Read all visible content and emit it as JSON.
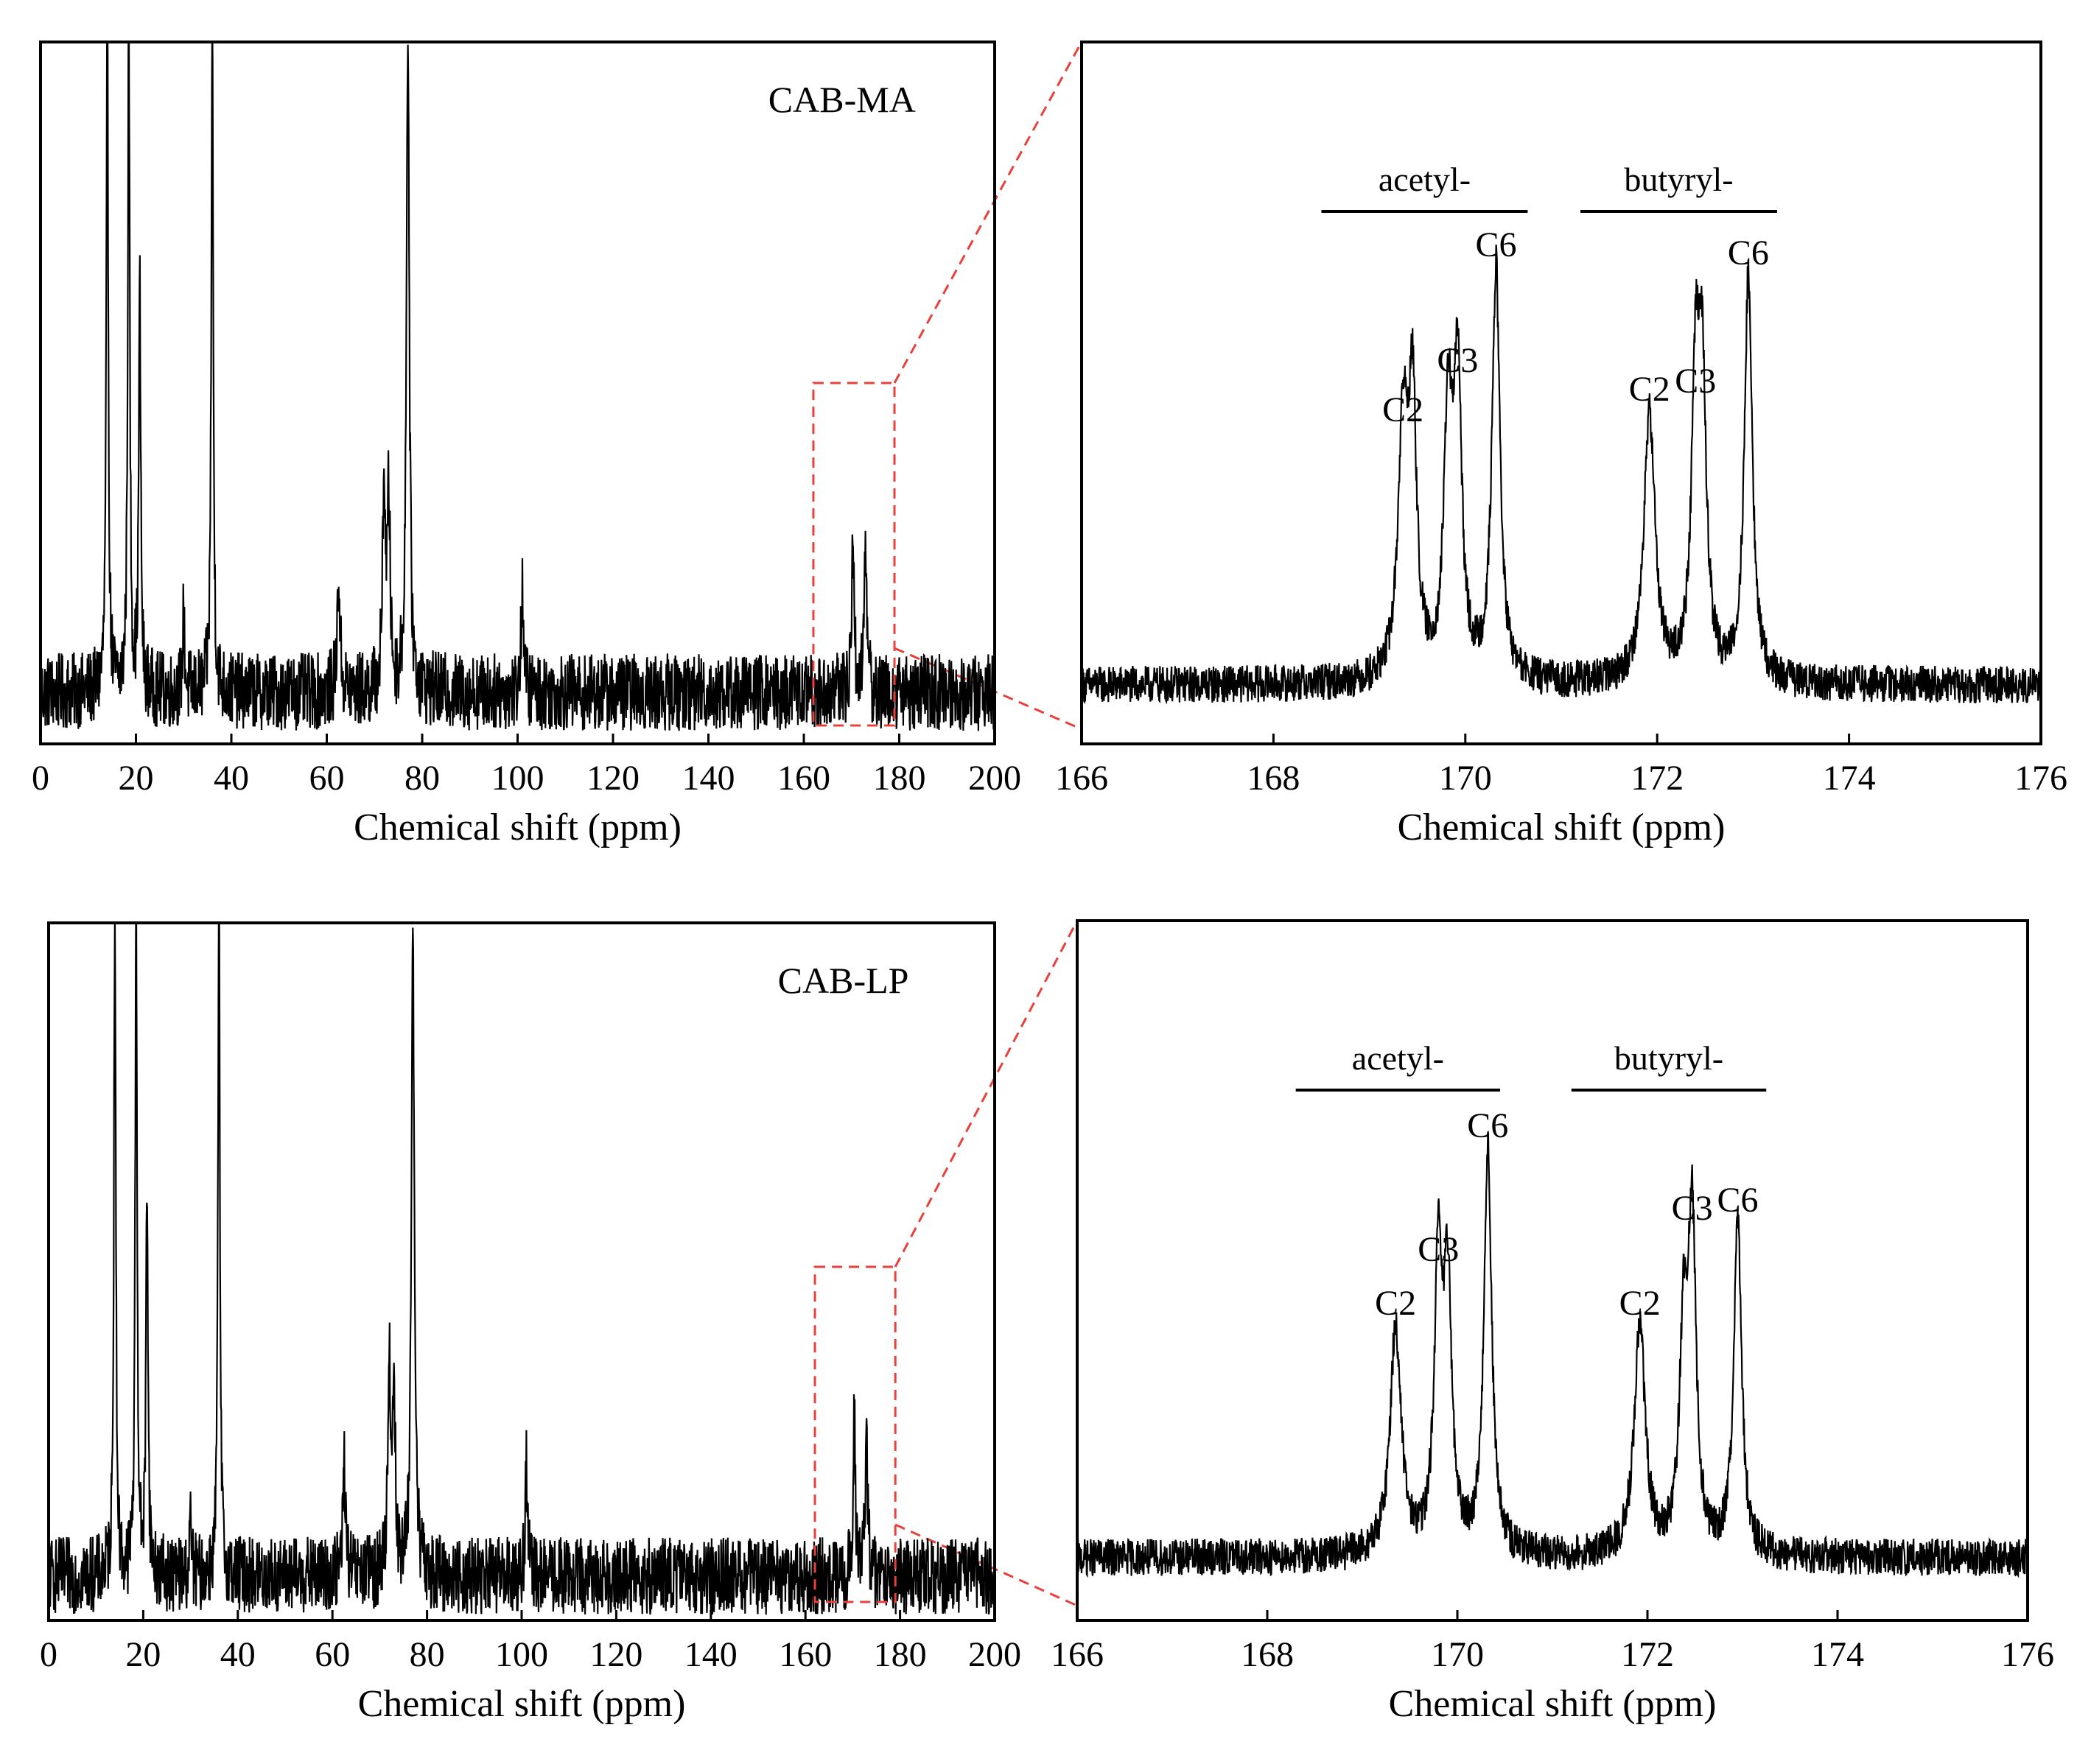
{
  "chart_data": [
    {
      "id": "cab-ma-full",
      "type": "line",
      "title": "",
      "annotation": "CAB-MA",
      "xlabel": "Chemical shift (ppm)",
      "ylabel": "",
      "xlim": [
        0,
        200
      ],
      "xticks": [
        "0",
        "20",
        "40",
        "60",
        "80",
        "100",
        "120",
        "140",
        "160",
        "180",
        "200"
      ],
      "noise": 0.075,
      "peaks": [
        {
          "x": 14,
          "h": 1.3,
          "w": 0.25
        },
        {
          "x": 18.5,
          "h": 1.3,
          "w": 0.25
        },
        {
          "x": 20.8,
          "h": 0.78,
          "w": 0.25
        },
        {
          "x": 30,
          "h": 0.15,
          "w": 0.25
        },
        {
          "x": 36,
          "h": 1.3,
          "w": 0.25
        },
        {
          "x": 62.5,
          "h": 0.22,
          "w": 0.35
        },
        {
          "x": 72,
          "h": 0.4,
          "w": 0.35
        },
        {
          "x": 73,
          "h": 0.36,
          "w": 0.35
        },
        {
          "x": 77,
          "h": 1.3,
          "w": 0.35
        },
        {
          "x": 101,
          "h": 0.21,
          "w": 0.3
        },
        {
          "x": 170.3,
          "h": 0.32,
          "w": 0.3
        },
        {
          "x": 172.9,
          "h": 0.32,
          "w": 0.3
        }
      ],
      "zoom_box": [
        162,
        179
      ]
    },
    {
      "id": "cab-ma-zoom",
      "type": "line",
      "title": "",
      "xlabel": "Chemical shift (ppm)",
      "ylabel": "",
      "xlim": [
        166,
        176
      ],
      "xticks": [
        "166",
        "168",
        "170",
        "172",
        "174",
        "176"
      ],
      "noise": 0.045,
      "groups": [
        {
          "label": "acetyl-",
          "range": [
            168.5,
            170.65
          ]
        },
        {
          "label": "butyryl-",
          "range": [
            171.2,
            173.25
          ]
        }
      ],
      "peaks": [
        {
          "x": 169.35,
          "h": 0.6,
          "w": 0.06,
          "label": "C2"
        },
        {
          "x": 169.45,
          "h": 0.64,
          "w": 0.05
        },
        {
          "x": 169.82,
          "h": 0.62,
          "w": 0.05
        },
        {
          "x": 169.92,
          "h": 0.72,
          "w": 0.05,
          "label": "C3"
        },
        {
          "x": 170.32,
          "h": 1.0,
          "w": 0.05,
          "label": "C6"
        },
        {
          "x": 171.92,
          "h": 0.65,
          "w": 0.07,
          "label": "C2"
        },
        {
          "x": 172.4,
          "h": 0.67,
          "w": 0.05,
          "label": "C3"
        },
        {
          "x": 172.47,
          "h": 0.67,
          "w": 0.05
        },
        {
          "x": 172.95,
          "h": 0.98,
          "w": 0.05,
          "label": "C6"
        }
      ]
    },
    {
      "id": "cab-lp-full",
      "type": "line",
      "title": "",
      "annotation": "CAB-LP",
      "xlabel": "Chemical shift (ppm)",
      "ylabel": "",
      "xlim": [
        0,
        200
      ],
      "xticks": [
        "0",
        "20",
        "40",
        "60",
        "80",
        "100",
        "120",
        "140",
        "160",
        "180",
        "200"
      ],
      "noise": 0.075,
      "peaks": [
        {
          "x": 14,
          "h": 1.3,
          "w": 0.25
        },
        {
          "x": 18.5,
          "h": 1.3,
          "w": 0.25
        },
        {
          "x": 20.8,
          "h": 0.78,
          "w": 0.25
        },
        {
          "x": 30,
          "h": 0.1,
          "w": 0.25
        },
        {
          "x": 36,
          "h": 1.3,
          "w": 0.25
        },
        {
          "x": 62.5,
          "h": 0.22,
          "w": 0.35
        },
        {
          "x": 72,
          "h": 0.4,
          "w": 0.35
        },
        {
          "x": 73,
          "h": 0.36,
          "w": 0.35
        },
        {
          "x": 77,
          "h": 1.3,
          "w": 0.35
        },
        {
          "x": 101,
          "h": 0.21,
          "w": 0.3
        },
        {
          "x": 170.3,
          "h": 0.32,
          "w": 0.3
        },
        {
          "x": 172.9,
          "h": 0.28,
          "w": 0.3
        }
      ],
      "zoom_box": [
        162,
        179
      ]
    },
    {
      "id": "cab-lp-zoom",
      "type": "line",
      "title": "",
      "xlabel": "Chemical shift (ppm)",
      "ylabel": "",
      "xlim": [
        166,
        176
      ],
      "xticks": [
        "166",
        "168",
        "170",
        "172",
        "174",
        "176"
      ],
      "noise": 0.045,
      "groups": [
        {
          "label": "acetyl-",
          "range": [
            168.3,
            170.45
          ]
        },
        {
          "label": "butyryl-",
          "range": [
            171.2,
            173.25
          ]
        }
      ],
      "peaks": [
        {
          "x": 169.35,
          "h": 0.55,
          "w": 0.07,
          "label": "C2"
        },
        {
          "x": 169.8,
          "h": 0.68,
          "w": 0.05,
          "label": "C3"
        },
        {
          "x": 169.9,
          "h": 0.62,
          "w": 0.05
        },
        {
          "x": 170.32,
          "h": 0.98,
          "w": 0.05,
          "label": "C6"
        },
        {
          "x": 171.92,
          "h": 0.55,
          "w": 0.07,
          "label": "C2"
        },
        {
          "x": 172.38,
          "h": 0.5,
          "w": 0.05
        },
        {
          "x": 172.47,
          "h": 0.78,
          "w": 0.05,
          "label": "C3"
        },
        {
          "x": 172.95,
          "h": 0.8,
          "w": 0.05,
          "label": "C6"
        }
      ]
    }
  ]
}
